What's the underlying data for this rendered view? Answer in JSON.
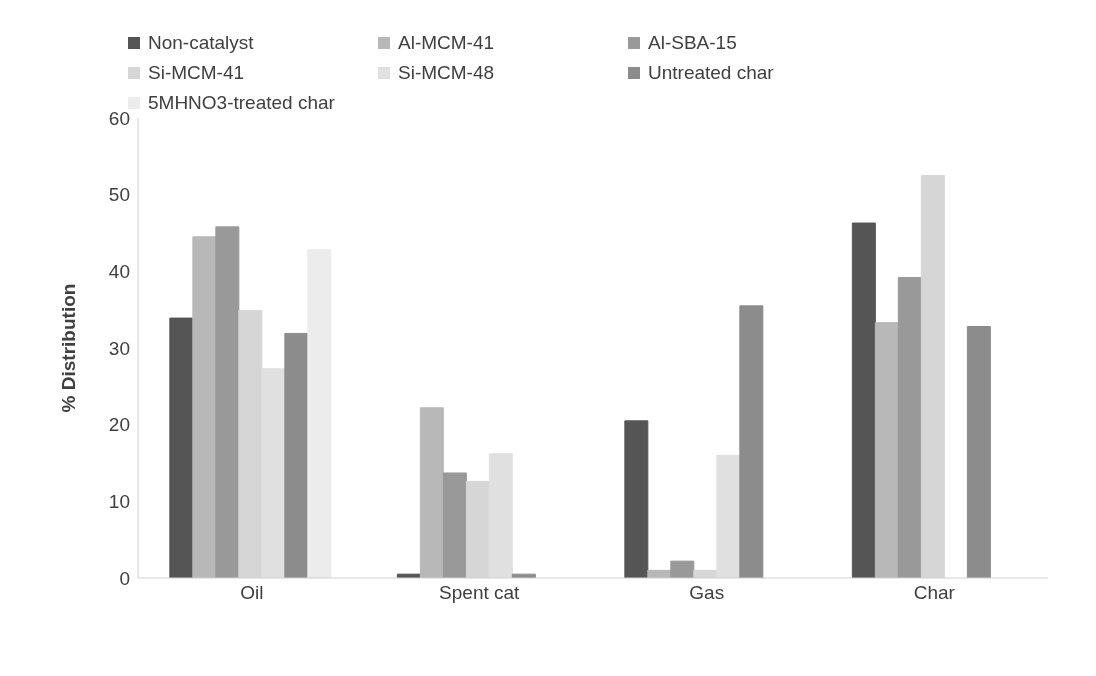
{
  "chart_data": {
    "type": "bar",
    "ylabel": "% Distribution",
    "categories": [
      "Oil",
      "Spent cat",
      "Gas",
      "Char"
    ],
    "series": [
      {
        "name": "Non-catalyst",
        "color": "#555555",
        "values": [
          33.9,
          0.5,
          20.5,
          46.3
        ]
      },
      {
        "name": "Al-MCM-41",
        "color": "#b8b8b8",
        "values": [
          44.5,
          22.2,
          1.0,
          33.3
        ]
      },
      {
        "name": "Al-SBA-15",
        "color": "#999999",
        "values": [
          45.8,
          13.7,
          2.2,
          39.2
        ]
      },
      {
        "name": "Si-MCM-41",
        "color": "#d6d6d6",
        "values": [
          34.9,
          12.6,
          1.0,
          52.5
        ]
      },
      {
        "name": "Si-MCM-48",
        "color": "#e0e0e0",
        "values": [
          27.3,
          16.2,
          16.0,
          0
        ]
      },
      {
        "name": "Untreated char",
        "color": "#8c8c8c",
        "values": [
          31.9,
          0.5,
          35.5,
          32.8
        ]
      },
      {
        "name": "5MHNO3-treated char",
        "color": "#ececec",
        "values": [
          42.8,
          0,
          0,
          0
        ]
      }
    ],
    "ylim": [
      0,
      60
    ],
    "yticks": [
      0,
      10,
      20,
      30,
      40,
      50,
      60
    ],
    "grid": false,
    "legend": "top"
  }
}
